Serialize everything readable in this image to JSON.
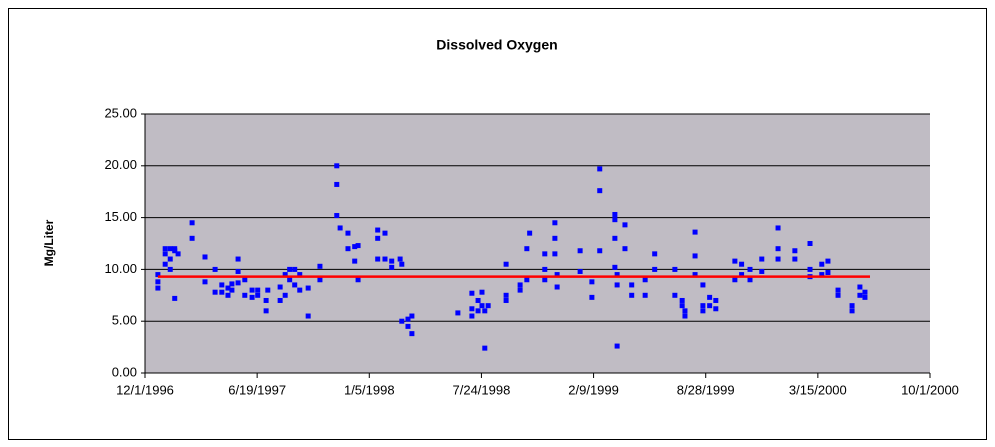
{
  "chart_data": {
    "type": "scatter",
    "title": "Dissolved Oxygen",
    "y_label": "Mg/Liter",
    "xlim": [
      35400,
      36800
    ],
    "xticks": [
      {
        "value": 35400,
        "label": "12/1/1996"
      },
      {
        "value": 35600,
        "label": "6/19/1997"
      },
      {
        "value": 35800,
        "label": "1/5/1998"
      },
      {
        "value": 36000,
        "label": "7/24/1998"
      },
      {
        "value": 36200,
        "label": "2/9/1999"
      },
      {
        "value": 36400,
        "label": "8/28/1999"
      },
      {
        "value": 36600,
        "label": "3/15/2000"
      },
      {
        "value": 36800,
        "label": "10/1/2000"
      }
    ],
    "ylim": [
      0,
      25
    ],
    "yticks": [
      {
        "value": 0,
        "label": "0.00"
      },
      {
        "value": 5,
        "label": "5.00"
      },
      {
        "value": 10,
        "label": "10.00"
      },
      {
        "value": 15,
        "label": "15.00"
      },
      {
        "value": 20,
        "label": "20.00"
      },
      {
        "value": 25,
        "label": "25.00"
      }
    ],
    "grid": true,
    "series": [
      {
        "color": "#0000ff",
        "marker": "square",
        "x": [
          35423,
          35423,
          35423,
          35436,
          35436,
          35436,
          35445,
          35445,
          35445,
          35453,
          35453,
          35453,
          35459,
          35484,
          35484,
          35507,
          35507,
          35525,
          35525,
          35537,
          35537,
          35548,
          35548,
          35555,
          35555,
          35566,
          35566,
          35566,
          35578,
          35578,
          35591,
          35591,
          35601,
          35601,
          35616,
          35616,
          35619,
          35641,
          35641,
          35650,
          35650,
          35658,
          35658,
          35667,
          35667,
          35676,
          35676,
          35691,
          35691,
          35712,
          35712,
          35742,
          35742,
          35742,
          35748,
          35762,
          35762,
          35774,
          35774,
          35780,
          35780,
          35815,
          35815,
          35815,
          35828,
          35828,
          35840,
          35840,
          35855,
          35858,
          35858,
          35869,
          35869,
          35876,
          35876,
          35958,
          35983,
          35983,
          35983,
          35994,
          35994,
          36001,
          36001,
          36006,
          36006,
          36012,
          36044,
          36044,
          36044,
          36069,
          36069,
          36081,
          36081,
          36086,
          36113,
          36113,
          36113,
          36131,
          36131,
          36131,
          36135,
          36135,
          36176,
          36176,
          36197,
          36197,
          36211,
          36211,
          36211,
          36238,
          36238,
          36238,
          36238,
          36242,
          36242,
          36242,
          36256,
          36256,
          36268,
          36268,
          36292,
          36292,
          36309,
          36309,
          36345,
          36345,
          36358,
          36358,
          36363,
          36363,
          36381,
          36381,
          36381,
          36395,
          36395,
          36395,
          36407,
          36407,
          36418,
          36418,
          36452,
          36452,
          36464,
          36464,
          36479,
          36479,
          36500,
          36500,
          36529,
          36529,
          36529,
          36559,
          36559,
          36586,
          36586,
          36586,
          36607,
          36607,
          36618,
          36618,
          36636,
          36636,
          36661,
          36661,
          36675,
          36675,
          36684,
          36684
        ],
        "values": [
          8.2,
          8.8,
          9.5,
          10.5,
          11.5,
          12,
          12,
          11,
          10,
          7.2,
          11.8,
          12,
          11.5,
          14.5,
          13,
          11.2,
          8.8,
          10,
          7.8,
          7.8,
          8.5,
          8.2,
          7.5,
          8,
          8.6,
          11,
          9.8,
          8.7,
          9,
          7.5,
          8,
          7.3,
          7.5,
          8,
          7,
          6,
          8,
          7,
          8.3,
          9.5,
          7.5,
          10,
          9,
          10,
          8.5,
          9.5,
          8,
          5.5,
          8.2,
          10.3,
          9,
          20,
          18.2,
          15.2,
          14,
          13.5,
          12,
          12.2,
          10.8,
          9,
          12.3,
          13.8,
          13,
          11,
          13.5,
          11,
          10.8,
          10.2,
          11,
          5,
          10.5,
          5.2,
          4.5,
          5.5,
          3.8,
          5.8,
          7.7,
          6.2,
          5.5,
          7,
          6,
          6.5,
          7.8,
          2.4,
          6,
          6.5,
          10.5,
          7.5,
          7,
          8,
          8.5,
          9,
          12,
          13.5,
          9,
          11.5,
          10,
          14.5,
          13,
          11.5,
          8.3,
          9.5,
          11.8,
          9.8,
          7.3,
          8.8,
          19.7,
          17.6,
          11.8,
          15.3,
          14.8,
          13,
          10.2,
          2.6,
          9.5,
          8.5,
          14.3,
          12,
          8.5,
          7.5,
          9,
          7.5,
          11.5,
          10,
          7.5,
          10,
          6.5,
          7,
          5.5,
          6,
          13.6,
          11.3,
          9.5,
          8.5,
          6.5,
          6,
          7.3,
          6.5,
          7,
          6.2,
          10.8,
          9,
          10.5,
          9.5,
          10,
          9,
          11,
          9.8,
          14,
          12,
          11,
          11.8,
          11,
          12.5,
          10,
          9.3,
          9.5,
          10.5,
          10.8,
          9.7,
          7.5,
          8,
          6,
          6.5,
          7.5,
          8.3,
          7.8,
          7.3
        ]
      },
      {
        "color": "#ff0000",
        "marker": "line",
        "x": [
          35423,
          36693
        ],
        "values": [
          9.3,
          9.3
        ]
      }
    ]
  }
}
